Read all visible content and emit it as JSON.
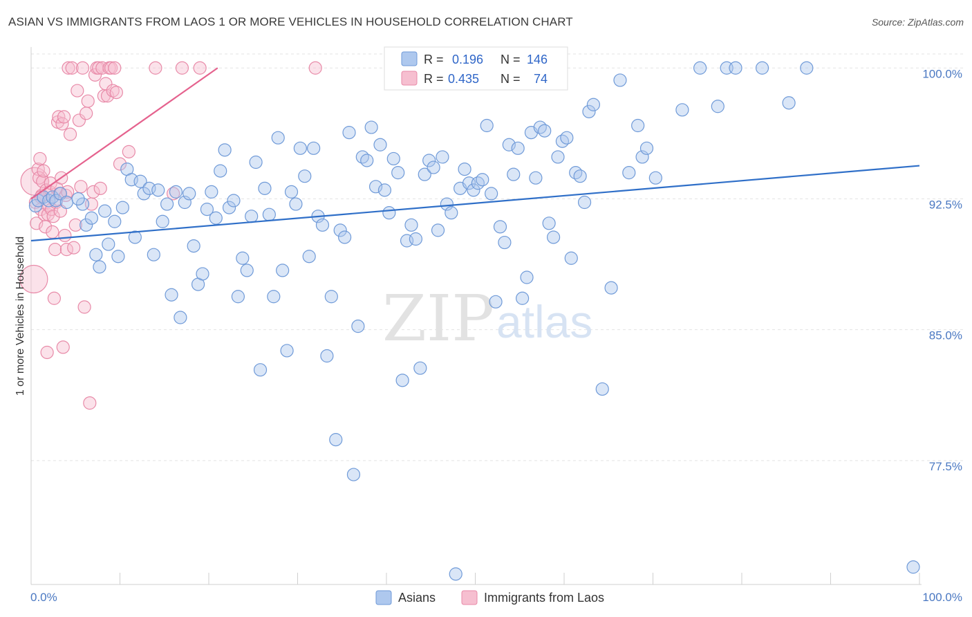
{
  "header": {
    "title": "ASIAN VS IMMIGRANTS FROM LAOS 1 OR MORE VEHICLES IN HOUSEHOLD CORRELATION CHART",
    "source": "Source: ZipAtlas.com"
  },
  "watermark": {
    "part1": "ZIP",
    "part2": "atlas"
  },
  "legend": {
    "r_label": "R =",
    "n_label": "N =",
    "items": [
      {
        "name": "Asians",
        "r": "0.196",
        "n": "146"
      },
      {
        "name": "Immigrants from Laos",
        "r": "0.435",
        "n": "74"
      }
    ]
  },
  "colors": {
    "asian_fill": "#aec8ee",
    "asian_stroke": "#6f9ad8",
    "asian_line": "#2f6fc8",
    "laos_fill": "#f6bfd0",
    "laos_stroke": "#e88aa8",
    "laos_line": "#e5628e",
    "grid": "#e3e3e3",
    "tick_label": "#4a78c2"
  },
  "chart_data": {
    "type": "scatter",
    "ylabel": "1 or more Vehicles in Household",
    "xlim": [
      0,
      100
    ],
    "ylim": [
      70.4,
      101.2
    ],
    "x_tick_labels": [
      "0.0%",
      "100.0%"
    ],
    "y_ticks": [
      77.5,
      85.0,
      92.5,
      100.0
    ],
    "y_tick_labels": [
      "77.5%",
      "85.0%",
      "92.5%",
      "100.0%"
    ],
    "grid": true,
    "series": [
      {
        "name": "Asians",
        "trend": {
          "x": [
            0,
            100
          ],
          "y": [
            90.1,
            94.4
          ]
        },
        "points": [
          [
            0.5,
            92.1
          ],
          [
            0.8,
            92.4
          ],
          [
            1.4,
            92.6
          ],
          [
            2.0,
            92.4
          ],
          [
            2.4,
            92.6
          ],
          [
            2.8,
            92.4
          ],
          [
            3.3,
            92.8
          ],
          [
            4.0,
            92.3
          ],
          [
            5.8,
            92.2
          ],
          [
            5.3,
            92.5
          ],
          [
            6.2,
            91.0
          ],
          [
            6.8,
            91.4
          ],
          [
            7.3,
            89.3
          ],
          [
            7.7,
            88.6
          ],
          [
            8.3,
            91.8
          ],
          [
            8.7,
            89.9
          ],
          [
            9.4,
            91.2
          ],
          [
            9.8,
            89.2
          ],
          [
            10.3,
            92.0
          ],
          [
            10.8,
            94.2
          ],
          [
            11.3,
            93.6
          ],
          [
            11.7,
            90.3
          ],
          [
            12.3,
            93.5
          ],
          [
            12.7,
            92.8
          ],
          [
            13.3,
            93.1
          ],
          [
            13.8,
            89.3
          ],
          [
            14.3,
            93.0
          ],
          [
            14.8,
            91.2
          ],
          [
            15.3,
            92.2
          ],
          [
            15.8,
            87.0
          ],
          [
            16.3,
            92.9
          ],
          [
            16.8,
            85.7
          ],
          [
            17.3,
            92.3
          ],
          [
            17.8,
            92.8
          ],
          [
            18.3,
            89.8
          ],
          [
            18.8,
            87.6
          ],
          [
            19.3,
            88.2
          ],
          [
            19.8,
            91.9
          ],
          [
            20.3,
            92.9
          ],
          [
            20.8,
            91.4
          ],
          [
            21.3,
            94.1
          ],
          [
            21.8,
            95.3
          ],
          [
            22.3,
            92.0
          ],
          [
            22.8,
            92.4
          ],
          [
            23.3,
            86.9
          ],
          [
            23.8,
            89.1
          ],
          [
            24.3,
            88.4
          ],
          [
            24.8,
            91.5
          ],
          [
            25.3,
            94.6
          ],
          [
            25.8,
            82.7
          ],
          [
            26.3,
            93.1
          ],
          [
            26.8,
            91.6
          ],
          [
            27.3,
            86.9
          ],
          [
            27.8,
            96.0
          ],
          [
            28.3,
            88.4
          ],
          [
            28.8,
            83.8
          ],
          [
            29.3,
            92.9
          ],
          [
            29.8,
            92.2
          ],
          [
            30.3,
            95.4
          ],
          [
            30.8,
            93.8
          ],
          [
            31.3,
            89.2
          ],
          [
            31.8,
            95.4
          ],
          [
            32.3,
            91.5
          ],
          [
            32.8,
            91.0
          ],
          [
            33.3,
            83.5
          ],
          [
            33.8,
            86.9
          ],
          [
            34.3,
            78.7
          ],
          [
            34.8,
            90.7
          ],
          [
            35.3,
            90.3
          ],
          [
            35.8,
            96.3
          ],
          [
            36.3,
            76.7
          ],
          [
            36.8,
            85.2
          ],
          [
            37.3,
            94.9
          ],
          [
            37.8,
            94.7
          ],
          [
            38.3,
            96.6
          ],
          [
            38.8,
            93.2
          ],
          [
            39.3,
            95.6
          ],
          [
            39.8,
            93.0
          ],
          [
            40.3,
            91.7
          ],
          [
            40.8,
            94.8
          ],
          [
            41.3,
            94.0
          ],
          [
            41.8,
            82.1
          ],
          [
            42.3,
            90.1
          ],
          [
            42.8,
            91.0
          ],
          [
            43.3,
            90.2
          ],
          [
            43.8,
            82.8
          ],
          [
            44.3,
            93.9
          ],
          [
            44.8,
            94.7
          ],
          [
            45.3,
            94.3
          ],
          [
            45.8,
            90.7
          ],
          [
            46.3,
            94.9
          ],
          [
            46.8,
            92.2
          ],
          [
            47.3,
            91.7
          ],
          [
            47.8,
            71.0
          ],
          [
            48.3,
            93.1
          ],
          [
            48.8,
            94.2
          ],
          [
            49.3,
            93.4
          ],
          [
            49.8,
            93.0
          ],
          [
            50.3,
            93.4
          ],
          [
            50.8,
            93.6
          ],
          [
            51.3,
            96.7
          ],
          [
            51.8,
            92.8
          ],
          [
            52.3,
            86.6
          ],
          [
            52.8,
            90.9
          ],
          [
            53.3,
            90.0
          ],
          [
            53.8,
            95.6
          ],
          [
            54.3,
            93.9
          ],
          [
            54.8,
            95.4
          ],
          [
            55.3,
            86.8
          ],
          [
            55.8,
            88.0
          ],
          [
            56.3,
            96.3
          ],
          [
            56.8,
            93.7
          ],
          [
            57.3,
            96.6
          ],
          [
            57.8,
            96.4
          ],
          [
            58.3,
            91.1
          ],
          [
            58.8,
            90.3
          ],
          [
            59.3,
            94.9
          ],
          [
            59.8,
            95.8
          ],
          [
            60.3,
            96.0
          ],
          [
            60.8,
            89.1
          ],
          [
            61.3,
            94.0
          ],
          [
            61.8,
            93.8
          ],
          [
            62.3,
            92.3
          ],
          [
            62.8,
            97.5
          ],
          [
            63.3,
            97.9
          ],
          [
            64.3,
            81.6
          ],
          [
            65.3,
            87.4
          ],
          [
            66.3,
            99.3
          ],
          [
            67.3,
            94.0
          ],
          [
            68.3,
            96.7
          ],
          [
            68.8,
            94.9
          ],
          [
            69.3,
            95.4
          ],
          [
            70.3,
            93.7
          ],
          [
            73.3,
            97.6
          ],
          [
            75.3,
            100.0
          ],
          [
            77.3,
            97.8
          ],
          [
            78.3,
            100.0
          ],
          [
            79.3,
            100.0
          ],
          [
            82.3,
            100.0
          ],
          [
            85.3,
            98.0
          ],
          [
            87.3,
            100.0
          ],
          [
            99.3,
            71.4
          ]
        ]
      },
      {
        "name": "Immigrants from Laos",
        "trend": {
          "x": [
            0,
            21
          ],
          "y": [
            92.5,
            100.0
          ]
        },
        "points": [
          [
            0.3,
            87.9
          ],
          [
            0.4,
            93.5
          ],
          [
            0.5,
            92.3
          ],
          [
            0.6,
            91.1
          ],
          [
            0.8,
            94.2
          ],
          [
            0.9,
            93.7
          ],
          [
            1.0,
            94.8
          ],
          [
            1.1,
            91.9
          ],
          [
            1.2,
            92.7
          ],
          [
            1.3,
            93.5
          ],
          [
            1.4,
            94.1
          ],
          [
            1.5,
            91.6
          ],
          [
            1.6,
            90.9
          ],
          [
            1.7,
            93.0
          ],
          [
            1.8,
            83.7
          ],
          [
            1.9,
            91.6
          ],
          [
            2.0,
            92.1
          ],
          [
            2.1,
            92.9
          ],
          [
            2.2,
            93.4
          ],
          [
            2.3,
            91.9
          ],
          [
            2.4,
            90.6
          ],
          [
            2.5,
            91.5
          ],
          [
            2.6,
            86.8
          ],
          [
            2.7,
            89.6
          ],
          [
            2.8,
            92.3
          ],
          [
            2.9,
            93.1
          ],
          [
            3.0,
            96.9
          ],
          [
            3.1,
            97.2
          ],
          [
            3.2,
            92.8
          ],
          [
            3.3,
            91.8
          ],
          [
            3.4,
            93.7
          ],
          [
            3.5,
            96.8
          ],
          [
            3.6,
            84.0
          ],
          [
            3.7,
            97.2
          ],
          [
            3.8,
            90.4
          ],
          [
            3.9,
            92.7
          ],
          [
            4.0,
            89.6
          ],
          [
            4.1,
            92.9
          ],
          [
            4.2,
            100.0
          ],
          [
            4.4,
            96.2
          ],
          [
            4.6,
            100.0
          ],
          [
            4.8,
            89.7
          ],
          [
            5.0,
            91.0
          ],
          [
            5.2,
            98.7
          ],
          [
            5.4,
            97.0
          ],
          [
            5.6,
            93.2
          ],
          [
            5.8,
            100.0
          ],
          [
            6.0,
            86.3
          ],
          [
            6.2,
            97.4
          ],
          [
            6.4,
            98.1
          ],
          [
            6.6,
            80.8
          ],
          [
            6.8,
            92.2
          ],
          [
            7.0,
            92.9
          ],
          [
            7.2,
            99.6
          ],
          [
            7.4,
            100.0
          ],
          [
            7.6,
            100.0
          ],
          [
            7.8,
            93.1
          ],
          [
            8.0,
            100.0
          ],
          [
            8.2,
            98.4
          ],
          [
            8.4,
            99.1
          ],
          [
            8.6,
            98.4
          ],
          [
            8.8,
            100.0
          ],
          [
            9.0,
            100.0
          ],
          [
            9.2,
            98.7
          ],
          [
            9.4,
            100.0
          ],
          [
            9.6,
            98.6
          ],
          [
            10.0,
            94.5
          ],
          [
            11.0,
            95.2
          ],
          [
            14.0,
            100.0
          ],
          [
            16.0,
            92.8
          ],
          [
            17.0,
            100.0
          ],
          [
            19.0,
            100.0
          ],
          [
            32.0,
            100.0
          ],
          [
            1.1,
            92.6
          ]
        ]
      }
    ]
  }
}
